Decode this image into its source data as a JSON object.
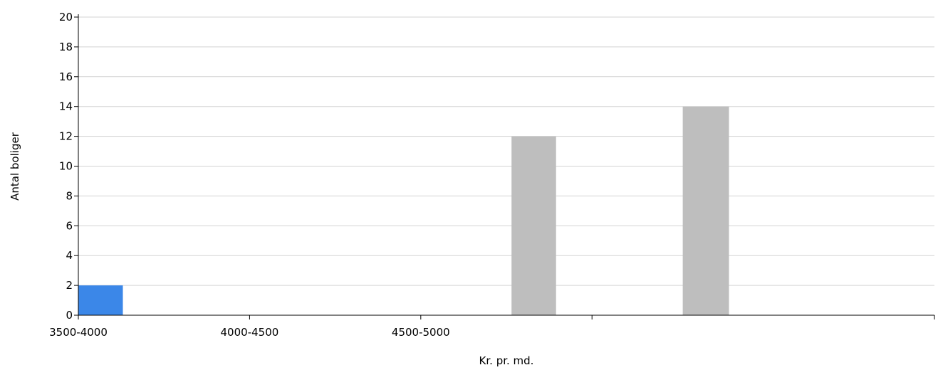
{
  "chart_data": {
    "type": "bar",
    "xlabel": "Kr. pr. md.",
    "ylabel": "Antal boliger",
    "ylim": [
      0,
      20
    ],
    "yticks": [
      0,
      2,
      4,
      6,
      8,
      10,
      12,
      14,
      16,
      18,
      20
    ],
    "xticks": [
      "3500-4000",
      "4000-4500",
      "4500-5000"
    ],
    "grid": true,
    "legend": "none",
    "bars": [
      {
        "x_start": 3500,
        "x_end": 3630,
        "value": 2,
        "color": "#3b87e8"
      },
      {
        "x_start": 4765,
        "x_end": 4895,
        "value": 12,
        "color": "#bebebe"
      },
      {
        "x_start": 5265,
        "x_end": 5400,
        "value": 14,
        "color": "#bebebe"
      }
    ],
    "x_domain": [
      3500,
      6000
    ]
  }
}
